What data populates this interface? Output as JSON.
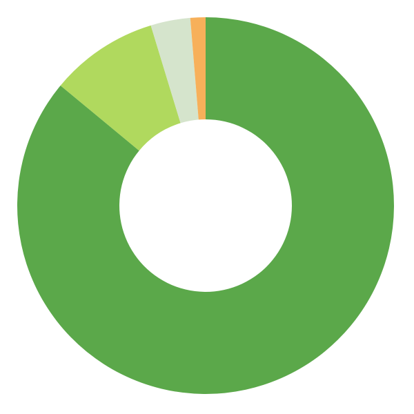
{
  "chart_data": {
    "type": "pie",
    "variant": "donut",
    "title": "",
    "legend": "none",
    "slices": [
      {
        "value": 86.0,
        "color": "#5ba84a"
      },
      {
        "value": 9.3,
        "color": "#b0d95e"
      },
      {
        "value": 3.4,
        "color": "#d5e4cc"
      },
      {
        "value": 1.3,
        "color": "#f7b05a"
      }
    ],
    "start_angle_deg": 0,
    "direction": "clockwise",
    "background": "#ffffff"
  }
}
